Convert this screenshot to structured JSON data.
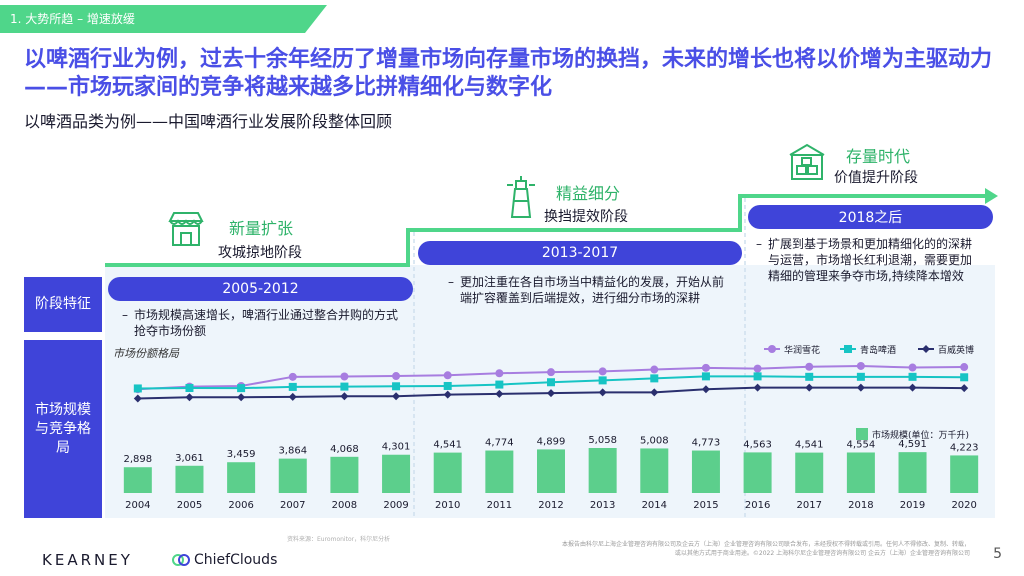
{
  "section_tag": "1. 大势所趋 – 增速放缓",
  "headline": "以啤酒行业为例，过去十余年经历了增量市场向存量市场的换挡，未来的增长也将以价增为主驱动力——市场玩家间的竞争将越来越多比拼精细化与数字化",
  "subtitle": "以啤酒品类为例——中国啤酒行业发展阶段整体回顾",
  "stages": [
    {
      "name": "新量扩张",
      "desc": "攻城掠地阶段",
      "icon": "storefront-icon"
    },
    {
      "name": "精益细分",
      "desc": "换挡提效阶段",
      "icon": "lighthouse-icon"
    },
    {
      "name": "存量时代",
      "desc": "价值提升阶段",
      "icon": "boxes-icon"
    }
  ],
  "row_labels": {
    "features": "阶段特征",
    "market": "市场规模与竞争格局"
  },
  "periods": [
    {
      "label": "2005-2012",
      "bullet": "市场规模高速增长，啤酒行业通过整合并购的方式抢夺市场份额"
    },
    {
      "label": "2013-2017",
      "bullet": "更加注重在各自市场当中精益化的发展，开始从前端扩容覆盖到后端提效，进行细分市场的深耕"
    },
    {
      "label": "2018之后",
      "bullet": "扩展到基于场景和更加精细化的的深耕与运营，市场增长红利退潮，需要更加精细的管理来争夺市场,持续降本增效"
    }
  ],
  "chart_title": "市场份额格局",
  "chart_data": {
    "type": "bar",
    "categories": [
      "2004",
      "2005",
      "2006",
      "2007",
      "2008",
      "2009",
      "2010",
      "2011",
      "2012",
      "2013",
      "2014",
      "2015",
      "2016",
      "2017",
      "2018",
      "2019",
      "2020"
    ],
    "bar_series": {
      "name": "市场规模(单位：万千升)",
      "values": [
        2898,
        3061,
        3459,
        3864,
        4068,
        4301,
        4541,
        4774,
        4899,
        5058,
        5008,
        4773,
        4563,
        4541,
        4554,
        4591,
        4223
      ],
      "labels": [
        "2,898",
        "3,061",
        "3,459",
        "3,864",
        "4,068",
        "4,301",
        "4,541",
        "4,774",
        "4,899",
        "5,058",
        "5,008",
        "4,773",
        "4,563",
        "4,541",
        "4,554",
        "4,591",
        "4,223"
      ],
      "color": "#5ccf8c"
    },
    "line_series": [
      {
        "name": "华润雪花",
        "color": "#a77de0",
        "values": [
          0.5,
          2.2,
          2.6,
          8.5,
          8.7,
          9.0,
          9.5,
          10.8,
          11.5,
          12.0,
          13.2,
          14.3,
          13.8,
          15.0,
          15.5,
          14.5,
          14.8
        ],
        "marker": "circle"
      },
      {
        "name": "青岛啤酒",
        "color": "#17c4c4",
        "values": [
          1.0,
          1.3,
          1.2,
          2.0,
          2.2,
          2.4,
          2.6,
          3.5,
          5.0,
          6.2,
          7.5,
          8.8,
          8.8,
          8.5,
          8.5,
          8.5,
          8.2
        ],
        "marker": "square"
      },
      {
        "name": "百威英博",
        "color": "#2a2f6e",
        "values": [
          -5.5,
          -4.7,
          -4.7,
          -4.4,
          -4.0,
          -4.0,
          -3.0,
          -2.5,
          -2.0,
          -1.5,
          -1.5,
          0.5,
          1.5,
          1.5,
          1.5,
          1.5,
          1.2
        ],
        "marker": "diamond"
      }
    ],
    "legend_placement": "top-right",
    "xlabel": "",
    "ylabel": ""
  },
  "footer": {
    "logo": "KEARNEY",
    "brand": "ChiefClouds",
    "page": "5",
    "note": "本报告由科尔尼上海企业管理咨询有限公司及企云方（上海）企业管理咨询有限公司联合发布，未经授权不得转载或引用。任何人不得修改、复制、转载，或以其他方式用于商业用途。©2022 上海科尔尼企业管理咨询有限公司  企云方（上海）企业管理咨询有限公司",
    "source": "资料来源：Euromonitor，科尔尼分析"
  },
  "colors": {
    "primary": "#3f44d9",
    "accent_green": "#2fb36a",
    "tag_green": "#4fd68a"
  }
}
